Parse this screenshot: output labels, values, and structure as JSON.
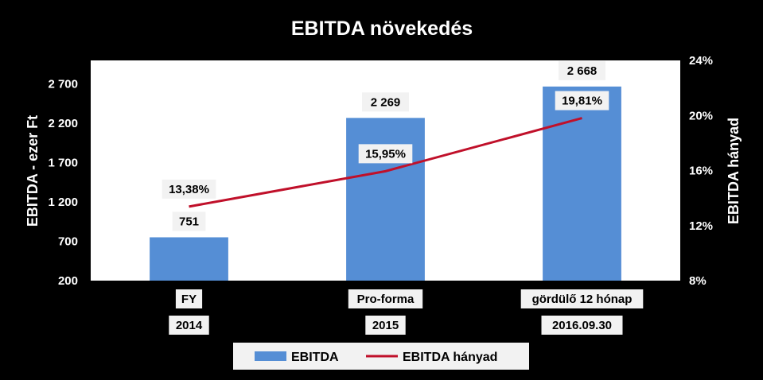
{
  "chart_data": {
    "type": "bar",
    "title": "EBITDA növekedés",
    "ylabel": "EBITDA - ezer Ft",
    "y2label": "EBITDA hányad",
    "ylim": [
      200,
      3000
    ],
    "y2lim": [
      8,
      24
    ],
    "yticks": [
      "200",
      "700",
      "1 200",
      "1 700",
      "2 200",
      "2 700"
    ],
    "y2ticks": [
      "8%",
      "12%",
      "16%",
      "20%",
      "24%"
    ],
    "categories": [
      {
        "line1": "FY",
        "line2": "2014"
      },
      {
        "line1": "Pro-forma",
        "line2": "2015"
      },
      {
        "line1": "gördülő 12 hónap",
        "line2": "2016.09.30"
      }
    ],
    "series": [
      {
        "name": "EBITDA",
        "type": "bar",
        "axis": "left",
        "color": "#558ED5",
        "values": [
          751,
          2269,
          2668
        ],
        "labels": [
          "751",
          "2 269",
          "2 668"
        ]
      },
      {
        "name": "EBITDA hányad",
        "type": "line",
        "axis": "right",
        "color": "#C0102A",
        "values": [
          13.38,
          15.95,
          19.81
        ],
        "labels": [
          "13,38%",
          "15,95%",
          "19,81%"
        ]
      }
    ],
    "grid": false,
    "legend": "bottom"
  },
  "colors": {
    "background": "#000000",
    "plot_area": "#FFFFFF",
    "text": "#FFFFFF",
    "label_box": "#F2F2F2"
  }
}
